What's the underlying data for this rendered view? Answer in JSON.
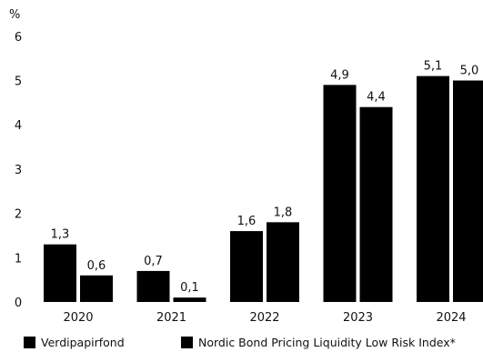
{
  "chart_data": {
    "type": "bar",
    "title": "",
    "xlabel": "",
    "ylabel": "%",
    "ylim": [
      0,
      6
    ],
    "yticks": [
      "0",
      "1",
      "2",
      "3",
      "4",
      "5",
      "6"
    ],
    "categories": [
      "2020",
      "2021",
      "2022",
      "2023",
      "2024"
    ],
    "series": [
      {
        "name": "Verdipapirfond",
        "color": "#000000",
        "values": [
          1.3,
          0.7,
          1.6,
          4.9,
          5.1
        ],
        "labels": [
          "1,3",
          "0,7",
          "1,6",
          "4,9",
          "5,1"
        ]
      },
      {
        "name": "Nordic Bond Pricing Liquidity Low Risk Index*",
        "color": "#000000",
        "values": [
          0.6,
          0.1,
          1.8,
          4.4,
          5.0
        ],
        "labels": [
          "0,6",
          "0,1",
          "1,8",
          "4,4",
          "5,0"
        ]
      }
    ],
    "grid": false,
    "legend_position": "bottom"
  }
}
